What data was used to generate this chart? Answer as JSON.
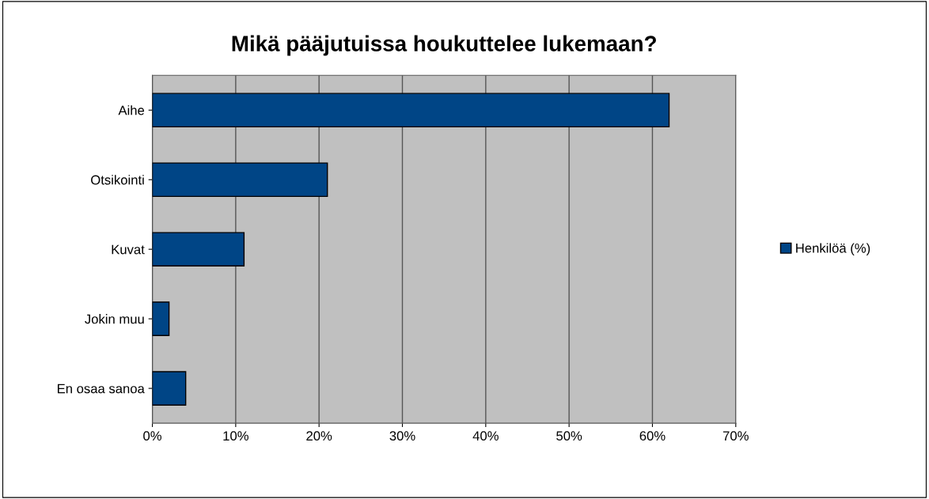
{
  "chart_data": {
    "type": "bar",
    "orientation": "horizontal",
    "title": "Mikä pääjutuissa houkuttelee lukemaan?",
    "categories": [
      "Aihe",
      "Otsikointi",
      "Kuvat",
      "Jokin muu",
      "En osaa sanoa"
    ],
    "series": [
      {
        "name": "Henkilöä (%)",
        "color": "#004586",
        "values": [
          62,
          21,
          11,
          2,
          4
        ]
      }
    ],
    "xlim": [
      0,
      70
    ],
    "xticks": [
      {
        "value": 0,
        "label": "0%"
      },
      {
        "value": 10,
        "label": "10%"
      },
      {
        "value": 20,
        "label": "20%"
      },
      {
        "value": 30,
        "label": "30%"
      },
      {
        "value": 40,
        "label": "40%"
      },
      {
        "value": 50,
        "label": "50%"
      },
      {
        "value": 60,
        "label": "60%"
      },
      {
        "value": 70,
        "label": "70%"
      }
    ],
    "grid": "x",
    "legend": "right"
  }
}
